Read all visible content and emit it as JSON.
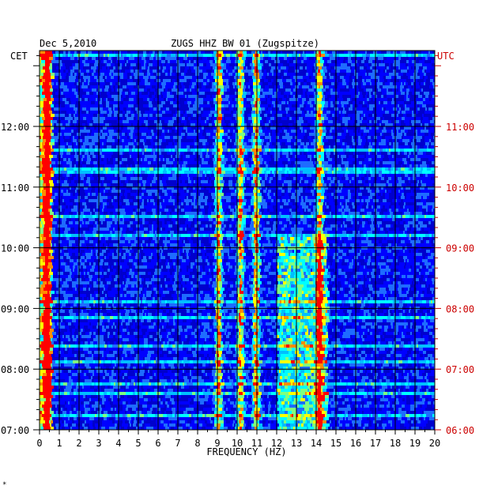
{
  "chart_data": {
    "type": "heatmap",
    "date": "Dec 5,2010",
    "title": "ZUGS HHZ BW 01 (Zugspitze)",
    "xlabel": "FREQUENCY (HZ)",
    "xlim": [
      0,
      20
    ],
    "x_ticks": [
      "0",
      "1",
      "2",
      "3",
      "4",
      "5",
      "6",
      "7",
      "8",
      "9",
      "10",
      "11",
      "12",
      "13",
      "14",
      "15",
      "16",
      "17",
      "18",
      "19",
      "20"
    ],
    "left_axis": {
      "label": "CET",
      "ticks": [
        {
          "label": "12:00",
          "hours": 12
        },
        {
          "label": "11:00",
          "hours": 11
        },
        {
          "label": "10:00",
          "hours": 10
        },
        {
          "label": "09:00",
          "hours": 9
        },
        {
          "label": "08:00",
          "hours": 8
        },
        {
          "label": "07:00",
          "hours": 7
        }
      ],
      "range_hours": [
        7,
        13.25
      ]
    },
    "right_axis": {
      "label": "UTC",
      "ticks": [
        "11:00",
        "10:00",
        "09:00",
        "08:00",
        "07:00",
        "06:00"
      ],
      "color": "#cc0000"
    },
    "colormap": [
      "#00008b",
      "#0000cd",
      "#0000ff",
      "#1e6cff",
      "#00bfff",
      "#00ffff",
      "#7fff7f",
      "#ffff00",
      "#ff8c00",
      "#ff0000"
    ],
    "spectral_lines_hz": [
      0.3,
      9.0,
      10.1,
      10.9,
      14.1
    ],
    "active_band_hz": [
      12,
      14.5
    ],
    "grid": true
  },
  "footer_mark": "*"
}
